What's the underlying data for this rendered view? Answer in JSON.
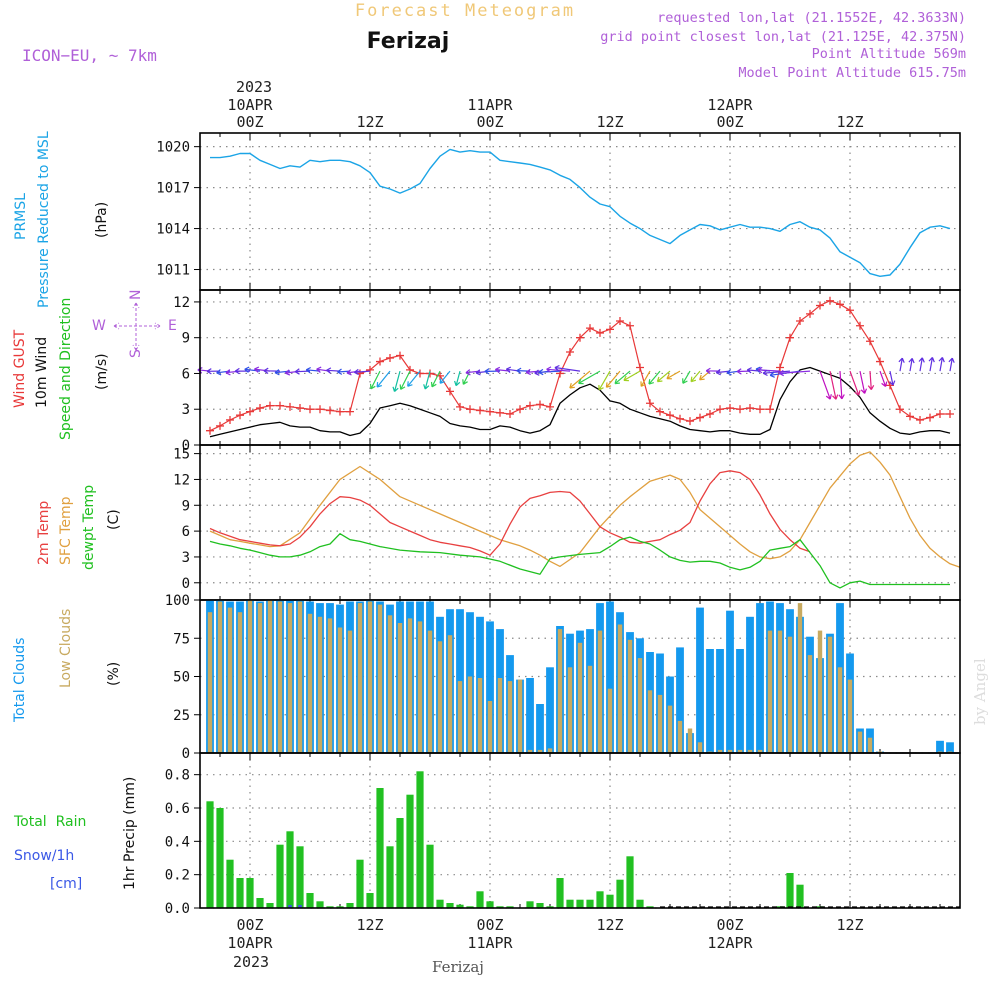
{
  "header": {
    "title": "Forecast Meteogram",
    "location": "Ferizaj",
    "model": "ICON−EU, ~ 7km",
    "requested": "requested lon,lat (21.1552E, 42.3633N)",
    "grid_point": "grid point closest lon,lat (21.125E, 42.375N)",
    "point_altitude": "Point Altitude 569m",
    "model_altitude": "Model Point Altitude 615.75m"
  },
  "time_axis": {
    "year": "2023",
    "top_labels": [
      {
        "hour": 0,
        "lines": [
          "10APR",
          "00Z"
        ]
      },
      {
        "hour": 12,
        "lines": [
          "12Z"
        ]
      },
      {
        "hour": 24,
        "lines": [
          "11APR",
          "00Z"
        ]
      },
      {
        "hour": 36,
        "lines": [
          "12Z"
        ]
      },
      {
        "hour": 48,
        "lines": [
          "12APR",
          "00Z"
        ]
      },
      {
        "hour": 60,
        "lines": [
          "12Z"
        ]
      }
    ],
    "bottom_labels": [
      {
        "hour": 0,
        "lines": [
          "00Z",
          "10APR"
        ]
      },
      {
        "hour": 12,
        "lines": [
          "12Z"
        ]
      },
      {
        "hour": 24,
        "lines": [
          "00Z",
          "11APR"
        ]
      },
      {
        "hour": 36,
        "lines": [
          "12Z"
        ]
      },
      {
        "hour": 48,
        "lines": [
          "00Z",
          "12APR"
        ]
      },
      {
        "hour": 60,
        "lines": [
          "12Z"
        ]
      }
    ],
    "hour_range": [
      -5,
      71
    ]
  },
  "footer": {
    "location": "Ferizaj",
    "watermark": "by Angel"
  },
  "panel_labels": {
    "pressure": {
      "prmsl": "PRMSL",
      "long": "Pressure Reduced to MSL",
      "unit": "(hPa)"
    },
    "wind": {
      "gust": "Wind GUST",
      "wind10": "10m Wind",
      "dir": "Speed and Direction",
      "unit": "(m/s)",
      "compass": [
        "N",
        "S",
        "W",
        "E"
      ]
    },
    "temp": {
      "t2m": "2m Temp",
      "sfc": "SFC Temp",
      "dew": "dewpt Temp",
      "unit": "(C)"
    },
    "cloud": {
      "total": "Total Clouds",
      "low": "Low Clouds",
      "unit": "(%)"
    },
    "precip": {
      "rain": "Total  Rain",
      "snow": "Snow/1h",
      "snow_unit": "[cm]",
      "axis": "1hr Precip (mm)"
    }
  },
  "colors": {
    "pressure": "#1ba4e6",
    "gust": "#e83838",
    "wind": "#000000",
    "t2m": "#e84040",
    "sfc": "#e0a040",
    "dew": "#20c020",
    "total_cloud": "#1499ee",
    "low_cloud": "#c8aa60",
    "rain": "#22c022",
    "snow": "#3a58e6",
    "purple": "#b060d8"
  },
  "chart_data": [
    {
      "type": "line",
      "name": "pressure",
      "ylim": [
        1009.5,
        1021
      ],
      "yticks": [
        1011,
        1014,
        1017,
        1020
      ],
      "x": [
        -4,
        -3,
        -2,
        -1,
        0,
        1,
        2,
        3,
        4,
        5,
        6,
        7,
        8,
        9,
        10,
        11,
        12,
        13,
        14,
        15,
        16,
        17,
        18,
        19,
        20,
        21,
        22,
        23,
        24,
        25,
        26,
        27,
        28,
        29,
        30,
        31,
        32,
        33,
        34,
        35,
        36,
        37,
        38,
        39,
        40,
        41,
        42,
        43,
        44,
        45,
        46,
        47,
        48,
        49,
        50,
        51,
        52,
        53,
        54,
        55,
        56,
        57,
        58,
        59,
        60,
        61,
        62,
        63,
        64,
        65,
        66,
        67,
        68,
        69,
        70
      ],
      "values": [
        1019.2,
        1019.2,
        1019.3,
        1019.5,
        1019.5,
        1019.0,
        1018.7,
        1018.4,
        1018.6,
        1018.5,
        1019.0,
        1018.9,
        1019.0,
        1019.0,
        1018.9,
        1018.6,
        1018.1,
        1017.1,
        1016.9,
        1016.6,
        1016.9,
        1017.3,
        1018.4,
        1019.3,
        1019.8,
        1019.6,
        1019.7,
        1019.6,
        1019.6,
        1019.0,
        1018.9,
        1018.8,
        1018.7,
        1018.5,
        1018.3,
        1017.9,
        1017.6,
        1017.0,
        1016.3,
        1015.8,
        1015.6,
        1014.9,
        1014.4,
        1014.0,
        1013.5,
        1013.2,
        1012.9,
        1013.5,
        1013.9,
        1014.3,
        1014.2,
        1013.9,
        1014.1,
        1014.3,
        1014.1,
        1014.1,
        1014.0,
        1013.8,
        1014.3,
        1014.5,
        1014.1,
        1013.9,
        1013.3,
        1012.3,
        1011.9,
        1011.5,
        1010.7,
        1010.5,
        1010.6,
        1011.4,
        1012.6,
        1013.7,
        1014.1,
        1014.2,
        1014.0
      ]
    },
    {
      "type": "line",
      "name": "wind",
      "ylim": [
        0,
        13
      ],
      "yticks": [
        0,
        3,
        6,
        9,
        12
      ],
      "x": [
        -4,
        -3,
        -2,
        -1,
        0,
        1,
        2,
        3,
        4,
        5,
        6,
        7,
        8,
        9,
        10,
        11,
        12,
        13,
        14,
        15,
        16,
        17,
        18,
        19,
        20,
        21,
        22,
        23,
        24,
        25,
        26,
        27,
        28,
        29,
        30,
        31,
        32,
        33,
        34,
        35,
        36,
        37,
        38,
        39,
        40,
        41,
        42,
        43,
        44,
        45,
        46,
        47,
        48,
        49,
        50,
        51,
        52,
        53,
        54,
        55,
        56,
        57,
        58,
        59,
        60,
        61,
        62,
        63,
        64,
        65,
        66,
        67,
        68,
        69,
        70
      ],
      "gust": [
        1.2,
        1.6,
        2.1,
        2.5,
        2.8,
        3.1,
        3.3,
        3.3,
        3.2,
        3.1,
        3.0,
        3.0,
        2.9,
        2.8,
        2.8,
        6.0,
        6.3,
        7.0,
        7.3,
        7.5,
        6.3,
        6.0,
        6.0,
        5.8,
        4.5,
        3.2,
        3.0,
        2.9,
        2.8,
        2.7,
        2.6,
        3.0,
        3.3,
        3.4,
        3.2,
        6.0,
        7.8,
        9.0,
        9.8,
        9.4,
        9.7,
        10.4,
        10.0,
        6.5,
        3.5,
        2.8,
        2.5,
        2.2,
        2.0,
        2.3,
        2.6,
        3.0,
        3.1,
        3.0,
        3.1,
        3.0,
        3.0,
        6.5,
        9.0,
        10.4,
        11.0,
        11.7,
        12.1,
        11.8,
        11.3,
        10.0,
        8.7,
        7.0,
        5.0,
        3.0,
        2.4,
        2.1,
        2.3,
        2.6,
        2.6
      ],
      "wind10": [
        0.7,
        0.9,
        1.1,
        1.3,
        1.5,
        1.7,
        1.8,
        1.9,
        1.6,
        1.5,
        1.5,
        1.2,
        1.1,
        1.1,
        0.8,
        1.0,
        1.8,
        3.1,
        3.3,
        3.5,
        3.3,
        3.0,
        2.7,
        2.4,
        1.8,
        1.6,
        1.5,
        1.3,
        1.3,
        1.6,
        1.5,
        1.2,
        1.0,
        1.2,
        1.7,
        3.5,
        4.2,
        4.8,
        5.1,
        4.6,
        3.7,
        3.5,
        3.0,
        2.7,
        2.4,
        2.2,
        2.0,
        1.6,
        1.3,
        1.2,
        1.1,
        1.2,
        1.2,
        1.0,
        0.9,
        0.9,
        1.3,
        3.8,
        5.3,
        6.3,
        6.5,
        6.2,
        5.9,
        5.6,
        4.9,
        4.0,
        2.7,
        2.0,
        1.4,
        1.0,
        0.9,
        1.1,
        1.2,
        1.2,
        1.0
      ]
    },
    {
      "type": "line",
      "name": "temperature",
      "ylim": [
        -2,
        16
      ],
      "yticks": [
        0,
        3,
        6,
        9,
        12,
        15
      ],
      "x": [
        -4,
        -3,
        -2,
        -1,
        0,
        1,
        2,
        3,
        4,
        5,
        6,
        7,
        8,
        9,
        10,
        11,
        12,
        13,
        14,
        15,
        16,
        17,
        18,
        19,
        20,
        21,
        22,
        23,
        24,
        25,
        26,
        27,
        28,
        29,
        30,
        31,
        32,
        33,
        34,
        35,
        36,
        37,
        38,
        39,
        40,
        41,
        42,
        43,
        44,
        45,
        46,
        47,
        48,
        49,
        50,
        51,
        52,
        53,
        54,
        55,
        56,
        57,
        58,
        59,
        60,
        61,
        62,
        63,
        64,
        65,
        66,
        67,
        68,
        69,
        70
      ],
      "t2m": [
        6.3,
        5.8,
        5.4,
        5.0,
        4.8,
        4.6,
        4.4,
        4.3,
        4.5,
        5.3,
        6.5,
        8.0,
        9.2,
        10.0,
        9.9,
        9.6,
        9.0,
        8.0,
        7.0,
        6.5,
        6.0,
        5.5,
        5.0,
        4.7,
        4.5,
        4.3,
        4.1,
        3.7,
        3.2,
        4.5,
        6.8,
        8.8,
        9.8,
        10.1,
        10.5,
        10.6,
        10.5,
        9.5,
        8.0,
        6.5,
        5.8,
        5.3,
        4.7,
        4.6,
        4.8,
        5.0,
        5.6,
        6.1,
        7.0,
        9.5,
        11.5,
        12.8,
        13.0,
        12.8,
        12.0,
        10.2,
        8.0,
        6.2,
        5.0,
        4.0,
        3.6
      ],
      "t2m_x": [
        -4,
        -3,
        -2,
        -1,
        0,
        1,
        2,
        3,
        4,
        5,
        6,
        7,
        8,
        9,
        10,
        11,
        12,
        13,
        14,
        15,
        16,
        17,
        18,
        19,
        20,
        21,
        22,
        23,
        24,
        25,
        26,
        27,
        28,
        29,
        30,
        31,
        32,
        33,
        34,
        35,
        36,
        37,
        38,
        39,
        40,
        41,
        42,
        43,
        44,
        45,
        46,
        47,
        48,
        49,
        50,
        51,
        52,
        53,
        54,
        55,
        56
      ],
      "sfc": [
        6.0,
        5.5,
        5.0,
        4.8,
        4.6,
        4.4,
        4.2,
        4.3,
        5.8,
        9.0,
        12.0,
        13.5,
        12.0,
        10.0,
        9.0,
        8.0,
        7.0,
        6.0,
        5.0,
        4.3,
        3.8,
        3.2,
        2.5,
        1.9,
        3.5,
        6.5,
        9.0,
        10.0,
        11.8,
        12.5,
        12.0,
        10.5,
        8.5,
        6.5,
        5.5,
        4.5,
        3.6,
        3.0,
        2.8,
        3.0,
        3.7,
        5.0,
        7.0,
        11.0,
        13.8,
        14.8,
        15.2,
        14.0,
        12.5,
        10.0,
        7.5,
        5.5,
        4.0,
        3.0,
        2.2,
        1.8
      ],
      "sfc_x": [
        -4,
        -3,
        -2,
        -1,
        0,
        1,
        2,
        3,
        5,
        7,
        9,
        11,
        13,
        15,
        17,
        19,
        21,
        23,
        25,
        27,
        28,
        29,
        30,
        31,
        33,
        35,
        37,
        38,
        40,
        42,
        43,
        44,
        45,
        47,
        48,
        49,
        50,
        51,
        52,
        53,
        54,
        55,
        56,
        58,
        60,
        61,
        62,
        63,
        64,
        65,
        66,
        67,
        68,
        69,
        70,
        71
      ],
      "dew": [
        4.8,
        4.5,
        4.3,
        4.0,
        3.8,
        3.5,
        3.2,
        3.0,
        3.0,
        3.2,
        3.6,
        4.2,
        4.5,
        5.7,
        5.0,
        4.8,
        4.5,
        4.2,
        3.8,
        3.6,
        3.5,
        3.2,
        3.0,
        2.5,
        1.6,
        1.0,
        2.8,
        3.0,
        3.3,
        3.5,
        4.2,
        5.0,
        5.3,
        4.8,
        4.5,
        3.8,
        3.0,
        2.6,
        2.4,
        2.5,
        2.5,
        2.3,
        1.8,
        1.5,
        1.8,
        2.5,
        3.8,
        4.0,
        4.2,
        5.0,
        3.5,
        2.0,
        0.0,
        -0.6,
        0.0,
        0.2,
        -0.2,
        -0.2
      ],
      "dew_x": [
        -4,
        -3,
        -2,
        -1,
        0,
        1,
        2,
        3,
        4,
        5,
        6,
        7,
        8,
        9,
        10,
        11,
        12,
        13,
        15,
        17,
        19,
        21,
        23,
        25,
        27,
        29,
        30,
        31,
        33,
        35,
        36,
        37,
        38,
        39,
        40,
        41,
        42,
        43,
        44,
        45,
        46,
        47,
        48,
        49,
        50,
        51,
        52,
        53,
        54,
        55,
        56,
        57,
        58,
        59,
        60,
        61,
        62,
        70
      ]
    },
    {
      "type": "bar",
      "name": "clouds",
      "ylim": [
        0,
        100
      ],
      "yticks": [
        0,
        25,
        50,
        75,
        100
      ],
      "x": [
        -4,
        -3,
        -2,
        -1,
        0,
        1,
        2,
        3,
        4,
        5,
        6,
        7,
        8,
        9,
        10,
        11,
        12,
        13,
        14,
        15,
        16,
        17,
        18,
        19,
        20,
        21,
        22,
        23,
        24,
        25,
        26,
        27,
        28,
        29,
        30,
        31,
        32,
        33,
        34,
        35,
        36,
        37,
        38,
        39,
        40,
        41,
        42,
        43,
        44,
        45,
        46,
        47,
        48,
        49,
        50,
        51,
        52,
        53,
        54,
        55,
        56,
        57,
        58,
        59,
        60,
        61,
        62,
        63,
        64,
        65,
        66,
        67,
        68,
        69,
        70
      ],
      "total": [
        100,
        100,
        99,
        99,
        100,
        99,
        100,
        100,
        100,
        100,
        99,
        98,
        98,
        97,
        99,
        99,
        100,
        99,
        97,
        99,
        99,
        99,
        99,
        89,
        94,
        94,
        92,
        89,
        86,
        81,
        64,
        48,
        49,
        32,
        56,
        83,
        78,
        80,
        81,
        98,
        99,
        92,
        79,
        75,
        66,
        65,
        50,
        69,
        13,
        95,
        68,
        68,
        93,
        68,
        89,
        98,
        99,
        98,
        94,
        89,
        76,
        62,
        78,
        98,
        65,
        16,
        16,
        1,
        0,
        0,
        0,
        0,
        0,
        8,
        7
      ],
      "low": [
        92,
        99,
        95,
        92,
        100,
        98,
        100,
        99,
        98,
        99,
        91,
        89,
        88,
        82,
        80,
        98,
        99,
        97,
        90,
        85,
        88,
        86,
        80,
        73,
        77,
        47,
        50,
        49,
        34,
        49,
        47,
        48,
        2,
        2,
        3,
        81,
        56,
        72,
        57,
        80,
        42,
        84,
        74,
        62,
        41,
        38,
        31,
        21,
        16,
        7,
        1,
        2,
        2,
        2,
        2,
        2,
        80,
        80,
        76,
        98,
        64,
        80,
        76,
        56,
        48,
        14,
        10,
        1,
        0,
        0,
        0,
        0,
        0,
        1,
        1
      ]
    },
    {
      "type": "bar",
      "name": "precipitation",
      "ylim": [
        0,
        0.93
      ],
      "yticks": [
        0,
        0.2,
        0.4,
        0.6,
        0.8
      ],
      "x": [
        -4,
        -3,
        -2,
        -1,
        0,
        1,
        2,
        3,
        4,
        5,
        6,
        7,
        8,
        9,
        10,
        11,
        12,
        13,
        14,
        15,
        16,
        17,
        18,
        19,
        20,
        21,
        22,
        23,
        24,
        25,
        26,
        27,
        28,
        29,
        30,
        31,
        32,
        33,
        34,
        35,
        36,
        37,
        38,
        39,
        40,
        41,
        42,
        43,
        44,
        45,
        46,
        47,
        48,
        49,
        50,
        51,
        52,
        53,
        54,
        55,
        56,
        57,
        58,
        59,
        60,
        61,
        62,
        63,
        64,
        65,
        66,
        67,
        68,
        69,
        70
      ],
      "rain": [
        0.64,
        0.6,
        0.29,
        0.18,
        0.18,
        0.06,
        0.03,
        0.38,
        0.46,
        0.37,
        0.09,
        0.04,
        0.01,
        0.01,
        0.03,
        0.29,
        0.09,
        0.72,
        0.37,
        0.54,
        0.68,
        0.82,
        0.38,
        0.05,
        0.03,
        0.02,
        0.01,
        0.1,
        0.04,
        0.01,
        0.01,
        0,
        0.04,
        0.03,
        0.01,
        0.18,
        0.05,
        0.05,
        0.05,
        0.1,
        0.08,
        0.17,
        0.31,
        0.05,
        0.01,
        0,
        0,
        0,
        0,
        0,
        0,
        0,
        0,
        0,
        0,
        0,
        0,
        0.01,
        0.21,
        0.14,
        0,
        0.01,
        0,
        0,
        0,
        0,
        0,
        0,
        0,
        0,
        0,
        0,
        0,
        0,
        0
      ],
      "snow_x": [
        4,
        5
      ],
      "snow": [
        0.01,
        0.01
      ]
    }
  ]
}
